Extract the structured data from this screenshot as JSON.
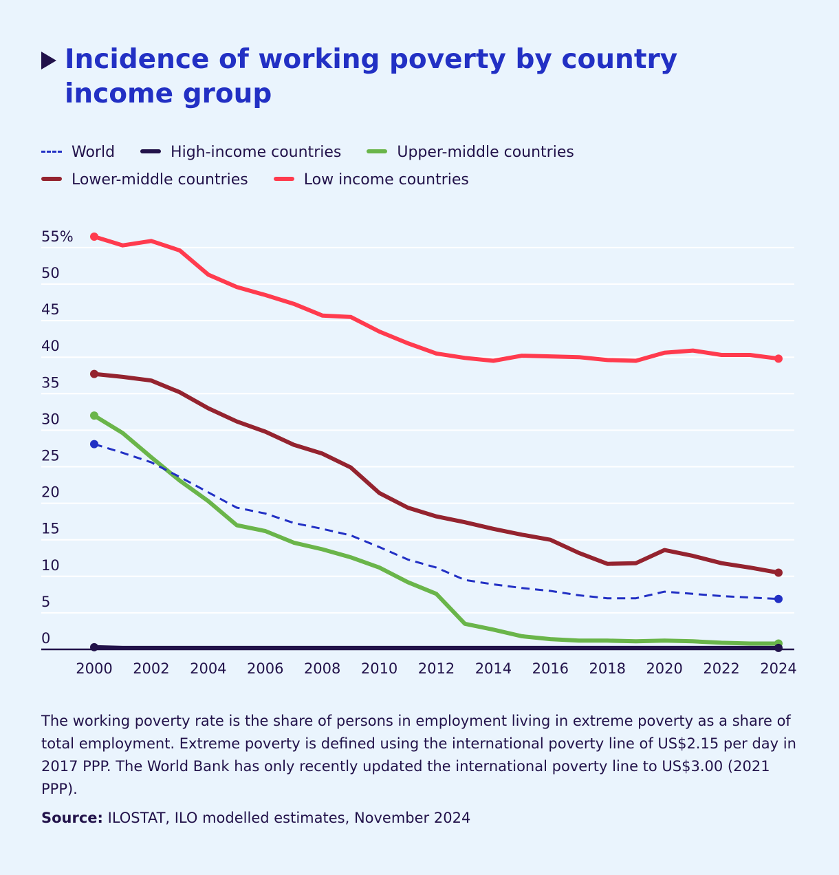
{
  "title": "Incidence of working poverty by country income group",
  "legend": [
    {
      "label": "World",
      "color": "#2230c4",
      "dashed": true
    },
    {
      "label": "High-income countries",
      "color": "#22124a",
      "dashed": false
    },
    {
      "label": "Upper-middle countries",
      "color": "#6ab54a",
      "dashed": false
    },
    {
      "label": "Lower-middle countries",
      "color": "#94232f",
      "dashed": false
    },
    {
      "label": "Low income countries",
      "color": "#ff3b4e",
      "dashed": false
    }
  ],
  "note": "The working poverty rate is the share of persons in employment living in extreme poverty as a share of total employment. Extreme poverty is defined using the international poverty line of US$2.15 per day in 2017 PPP. The World Bank has only recently updated the international poverty line to US$3.00 (2021 PPP).",
  "source_label": "Source:",
  "source_text": " ILOSTAT, ILO modelled estimates, November 2024",
  "chart_data": {
    "type": "line",
    "x": [
      2000,
      2001,
      2002,
      2003,
      2004,
      2005,
      2006,
      2007,
      2008,
      2009,
      2010,
      2011,
      2012,
      2013,
      2014,
      2015,
      2016,
      2017,
      2018,
      2019,
      2020,
      2021,
      2022,
      2023,
      2024
    ],
    "x_ticks": [
      2000,
      2002,
      2004,
      2006,
      2008,
      2010,
      2012,
      2014,
      2016,
      2018,
      2020,
      2022,
      2024
    ],
    "y_ticks": [
      0,
      5,
      10,
      15,
      20,
      25,
      30,
      35,
      40,
      45,
      50,
      55
    ],
    "y_tick_labels": [
      "0",
      "5",
      "10",
      "15",
      "20",
      "25",
      "30",
      "35",
      "40",
      "45",
      "50",
      "55%"
    ],
    "ylim": [
      0,
      55
    ],
    "grid": true,
    "legend_position": "top",
    "series": [
      {
        "name": "World",
        "color": "#2230c4",
        "dashed": true,
        "values": [
          28.1,
          26.9,
          25.6,
          23.6,
          21.5,
          19.4,
          18.6,
          17.3,
          16.5,
          15.6,
          14.0,
          12.3,
          11.2,
          9.5,
          8.9,
          8.4,
          8.0,
          7.4,
          7.0,
          7.0,
          7.9,
          7.6,
          7.3,
          7.1,
          6.9
        ]
      },
      {
        "name": "High-income countries",
        "color": "#22124a",
        "dashed": false,
        "values": [
          0.3,
          0.2,
          0.2,
          0.2,
          0.2,
          0.2,
          0.2,
          0.2,
          0.2,
          0.2,
          0.2,
          0.2,
          0.2,
          0.2,
          0.2,
          0.2,
          0.2,
          0.2,
          0.2,
          0.2,
          0.2,
          0.2,
          0.2,
          0.2,
          0.2
        ]
      },
      {
        "name": "Upper-middle countries",
        "color": "#6ab54a",
        "dashed": false,
        "values": [
          32.0,
          29.6,
          26.3,
          23.1,
          20.3,
          17.0,
          16.2,
          14.6,
          13.7,
          12.6,
          11.2,
          9.2,
          7.6,
          3.5,
          2.7,
          1.8,
          1.4,
          1.2,
          1.2,
          1.1,
          1.2,
          1.1,
          0.9,
          0.8,
          0.8
        ]
      },
      {
        "name": "Lower-middle countries",
        "color": "#94232f",
        "dashed": false,
        "values": [
          37.7,
          37.3,
          36.8,
          35.2,
          33.0,
          31.2,
          29.8,
          28.0,
          26.8,
          24.9,
          21.4,
          19.4,
          18.2,
          17.4,
          16.5,
          15.7,
          15.0,
          13.2,
          11.7,
          11.8,
          13.6,
          12.8,
          11.8,
          11.2,
          10.5
        ]
      },
      {
        "name": "Low income countries",
        "color": "#ff3b4e",
        "dashed": false,
        "values": [
          56.5,
          55.3,
          55.9,
          54.6,
          51.3,
          49.6,
          48.5,
          47.3,
          45.7,
          45.5,
          43.5,
          41.9,
          40.5,
          39.9,
          39.5,
          40.2,
          40.1,
          40.0,
          39.6,
          39.5,
          40.6,
          40.9,
          40.3,
          40.3,
          39.8
        ]
      }
    ]
  }
}
